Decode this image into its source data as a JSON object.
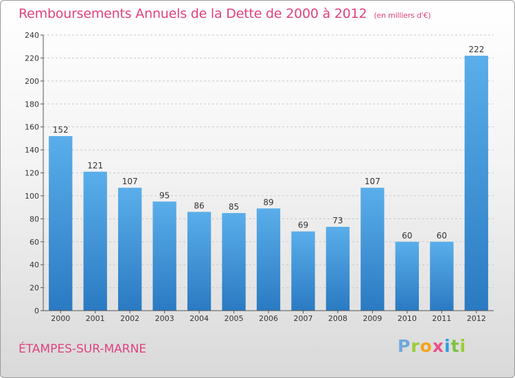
{
  "chart_data": {
    "type": "bar",
    "title": "Remboursements Annuels de la Dette de 2000 à 2012",
    "unit_note": "(en milliers d'€)",
    "categories": [
      "2000",
      "2001",
      "2002",
      "2003",
      "2004",
      "2005",
      "2006",
      "2007",
      "2008",
      "2009",
      "2010",
      "2011",
      "2012"
    ],
    "values": [
      152,
      121,
      107,
      95,
      86,
      85,
      89,
      69,
      73,
      107,
      60,
      60,
      222
    ],
    "ylim": [
      0,
      240
    ],
    "yticks": [
      0,
      20,
      40,
      60,
      80,
      100,
      120,
      140,
      160,
      180,
      200,
      220,
      240
    ],
    "grid": true,
    "bar_color": "#4a9fe0"
  },
  "footer": {
    "city": "ÉTAMPES-SUR-MARNE",
    "logo_letters": [
      "P",
      "r",
      "o",
      "x",
      "i",
      "t",
      "i"
    ]
  }
}
